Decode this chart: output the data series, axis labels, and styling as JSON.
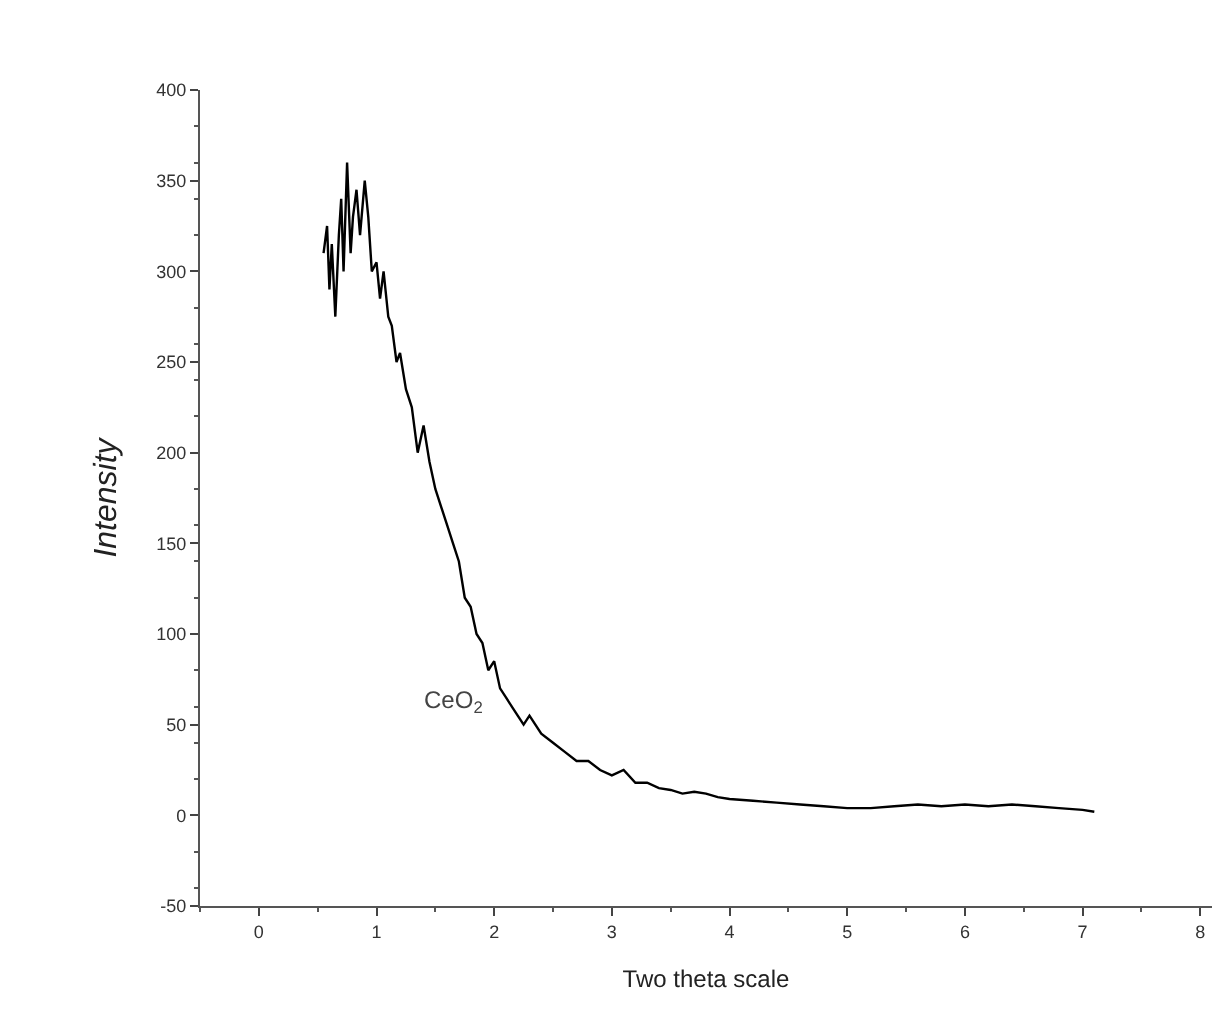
{
  "chart_data": {
    "type": "line",
    "xlabel": "Two theta scale",
    "ylabel": "Intensity",
    "annotations": [
      "CeO$_{2}$"
    ],
    "series": [
      {
        "color": "#000000",
        "x": [
          0.55,
          0.58,
          0.6,
          0.62,
          0.65,
          0.68,
          0.7,
          0.72,
          0.75,
          0.78,
          0.8,
          0.83,
          0.86,
          0.9,
          0.93,
          0.96,
          1.0,
          1.03,
          1.06,
          1.1,
          1.13,
          1.17,
          1.2,
          1.25,
          1.3,
          1.35,
          1.4,
          1.45,
          1.5,
          1.55,
          1.6,
          1.65,
          1.7,
          1.75,
          1.8,
          1.85,
          1.9,
          1.95,
          2.0,
          2.05,
          2.1,
          2.15,
          2.2,
          2.25,
          2.3,
          2.4,
          2.5,
          2.6,
          2.7,
          2.8,
          2.9,
          3.0,
          3.1,
          3.2,
          3.3,
          3.4,
          3.5,
          3.6,
          3.7,
          3.8,
          3.9,
          4.0,
          4.2,
          4.4,
          4.6,
          4.8,
          5.0,
          5.2,
          5.4,
          5.6,
          5.8,
          6.0,
          6.2,
          6.4,
          6.6,
          6.8,
          7.0,
          7.1
        ],
        "values": [
          310,
          325,
          290,
          315,
          275,
          320,
          340,
          300,
          360,
          310,
          330,
          345,
          320,
          350,
          330,
          300,
          305,
          285,
          300,
          275,
          270,
          250,
          255,
          235,
          225,
          200,
          215,
          195,
          180,
          170,
          160,
          150,
          140,
          120,
          115,
          100,
          95,
          80,
          85,
          70,
          65,
          60,
          55,
          50,
          55,
          45,
          40,
          35,
          30,
          30,
          25,
          22,
          25,
          18,
          18,
          15,
          14,
          12,
          13,
          12,
          10,
          9,
          8,
          7,
          6,
          5,
          4,
          4,
          5,
          6,
          5,
          6,
          5,
          6,
          5,
          4,
          3,
          2
        ]
      }
    ],
    "xlim": [
      -0.5,
      8.1
    ],
    "ylim": [
      -50,
      400
    ],
    "xticks": [
      0,
      1,
      2,
      3,
      4,
      5,
      6,
      7,
      8
    ],
    "yticks": [
      -50,
      0,
      50,
      100,
      150,
      200,
      250,
      300,
      350,
      400
    ],
    "legend": false,
    "marker": "none",
    "line_style": "solid"
  }
}
